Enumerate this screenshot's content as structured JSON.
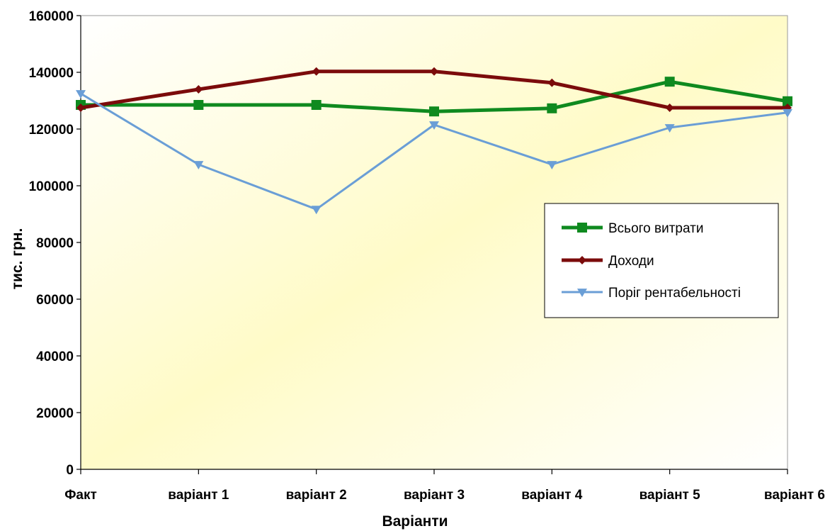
{
  "chart_data": {
    "type": "line",
    "categories": [
      "Факт",
      "варіант 1",
      "варіант 2",
      "варіант 3",
      "варіант 4",
      "варіант 5",
      "варіант 6"
    ],
    "series": [
      {
        "name": "Всього витрати",
        "color": "#0f8a1f",
        "marker": "square",
        "values": [
          128500,
          128500,
          128500,
          126200,
          127300,
          136700,
          129800
        ]
      },
      {
        "name": "Доходи",
        "color": "#7b0b0b",
        "marker": "diamond",
        "values": [
          127500,
          134000,
          140300,
          140300,
          136300,
          127500,
          127500
        ]
      },
      {
        "name": "Поріг рентабельності",
        "color": "#6a9ed6",
        "marker": "triangle-down",
        "values": [
          132500,
          107500,
          91700,
          121500,
          107500,
          120500,
          125800
        ]
      }
    ],
    "xlabel": "Варіанти",
    "ylabel": "тис. грн.",
    "ylim": [
      0,
      160000
    ],
    "yticks": [
      "0",
      "20000",
      "40000",
      "60000",
      "80000",
      "100000",
      "120000",
      "140000",
      "160000"
    ],
    "grid": false,
    "legend_position": "right"
  }
}
